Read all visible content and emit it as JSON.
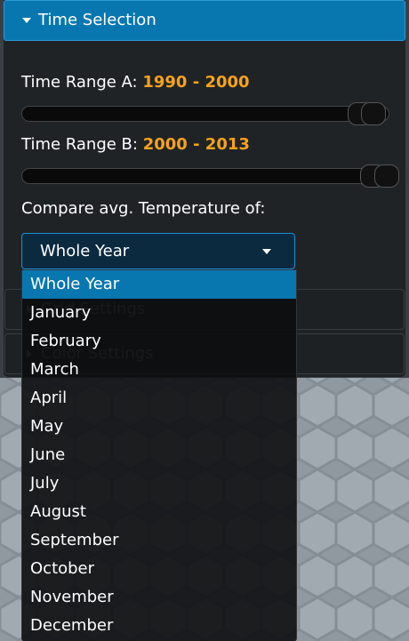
{
  "panel": {
    "title": "Time Selection",
    "range_a": {
      "label": "Time Range A:",
      "value": "1990 - 2000"
    },
    "range_b": {
      "label": "Time Range B:",
      "value": "2000 - 2013"
    },
    "compare_label": "Compare avg. Temperature of:",
    "select": {
      "value": "Whole Year",
      "options": [
        "Whole Year",
        "January",
        "February",
        "March",
        "April",
        "May",
        "June",
        "July",
        "August",
        "September",
        "October",
        "November",
        "December"
      ]
    },
    "sections": [
      "Grid Settings",
      "Color Settings"
    ]
  }
}
